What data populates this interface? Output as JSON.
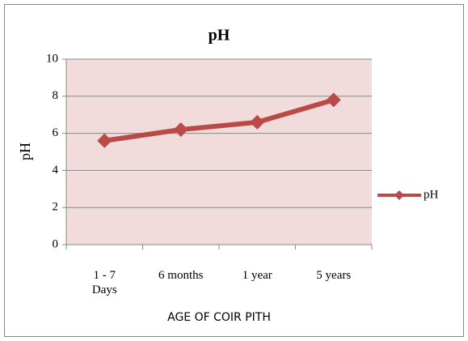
{
  "chart_data": {
    "type": "line",
    "title": "pH",
    "x_label": "AGE OF COIR PITH",
    "y_label": "pH",
    "categories": [
      "1 - 7 Days",
      "6 months",
      "1 year",
      "5 years"
    ],
    "series": [
      {
        "name": "pH",
        "color": "#b94a48",
        "values": [
          5.6,
          6.2,
          6.6,
          7.8
        ]
      }
    ],
    "ylim": [
      0,
      10
    ],
    "yticks": [
      0,
      2,
      4,
      6,
      8,
      10
    ],
    "grid": true,
    "legend": "right",
    "plot_background": "#f2dcdb"
  }
}
